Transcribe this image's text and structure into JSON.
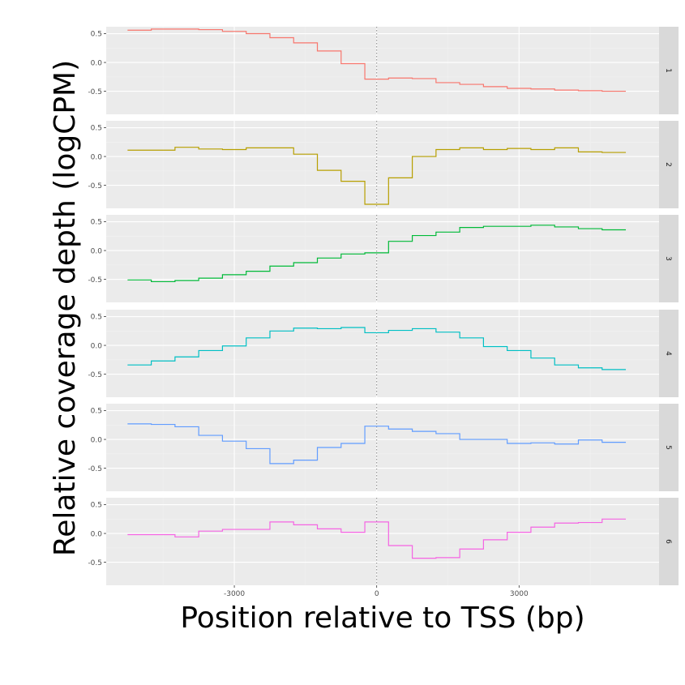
{
  "colors": {
    "panel_background": "#EBEBEB",
    "gridline_major": "#FFFFFF",
    "gridline_minor": "#F2F2F2",
    "strip_background": "#D9D9D9",
    "tss_line": "#888888"
  },
  "chart_data": {
    "type": "line",
    "subtype": "step, small multiples faceted by row",
    "xlabel": "Position relative to TSS (bp)",
    "ylabel": "Relative coverage depth (logCPM)",
    "xlim": [
      -5700,
      5950
    ],
    "ylim": [
      -0.9,
      0.62
    ],
    "x_ticks": [
      -3000,
      0,
      3000
    ],
    "x_tick_labels": [
      "-3000",
      "0",
      "3000"
    ],
    "y_ticks": [
      0.5,
      0.0,
      -0.5
    ],
    "y_tick_labels": [
      "0.5",
      "0.0",
      "-0.5"
    ],
    "grid": true,
    "reference_line": {
      "x": 0,
      "style": "dotted"
    },
    "step_edges": [
      -5250,
      -4750,
      -4250,
      -3750,
      -3250,
      -2750,
      -2250,
      -1750,
      -1250,
      -750,
      -250,
      250,
      750,
      1250,
      1750,
      2250,
      2750,
      3250,
      3750,
      4250,
      4750,
      5250
    ],
    "series": [
      {
        "name": "1",
        "color": "#F8766D",
        "values": [
          0.56,
          0.58,
          0.58,
          0.57,
          0.54,
          0.5,
          0.43,
          0.34,
          0.2,
          -0.02,
          -0.29,
          -0.27,
          -0.28,
          -0.35,
          -0.38,
          -0.42,
          -0.45,
          -0.46,
          -0.48,
          -0.49,
          -0.5
        ]
      },
      {
        "name": "2",
        "color": "#B79F00",
        "values": [
          0.11,
          0.11,
          0.16,
          0.13,
          0.12,
          0.15,
          0.15,
          0.04,
          -0.24,
          -0.43,
          -0.83,
          -0.37,
          0.0,
          0.12,
          0.15,
          0.12,
          0.14,
          0.12,
          0.15,
          0.08,
          0.07
        ]
      },
      {
        "name": "3",
        "color": "#00BA38",
        "values": [
          -0.51,
          -0.54,
          -0.52,
          -0.48,
          -0.42,
          -0.36,
          -0.27,
          -0.21,
          -0.13,
          -0.06,
          -0.04,
          0.16,
          0.26,
          0.32,
          0.4,
          0.42,
          0.42,
          0.44,
          0.41,
          0.38,
          0.36
        ]
      },
      {
        "name": "4",
        "color": "#00BFC4",
        "values": [
          -0.34,
          -0.27,
          -0.2,
          -0.09,
          -0.01,
          0.13,
          0.25,
          0.3,
          0.29,
          0.31,
          0.22,
          0.26,
          0.29,
          0.23,
          0.13,
          -0.02,
          -0.09,
          -0.22,
          -0.34,
          -0.39,
          -0.42
        ]
      },
      {
        "name": "5",
        "color": "#619CFF",
        "values": [
          0.27,
          0.26,
          0.22,
          0.07,
          -0.03,
          -0.16,
          -0.42,
          -0.36,
          -0.14,
          -0.07,
          0.23,
          0.18,
          0.14,
          0.1,
          0.0,
          0.0,
          -0.07,
          -0.06,
          -0.08,
          -0.01,
          -0.05
        ]
      },
      {
        "name": "6",
        "color": "#F564E3",
        "values": [
          -0.02,
          -0.02,
          -0.06,
          0.04,
          0.07,
          0.07,
          0.2,
          0.15,
          0.08,
          0.02,
          0.2,
          -0.21,
          -0.43,
          -0.42,
          -0.27,
          -0.11,
          0.02,
          0.11,
          0.18,
          0.19,
          0.25
        ]
      }
    ]
  }
}
